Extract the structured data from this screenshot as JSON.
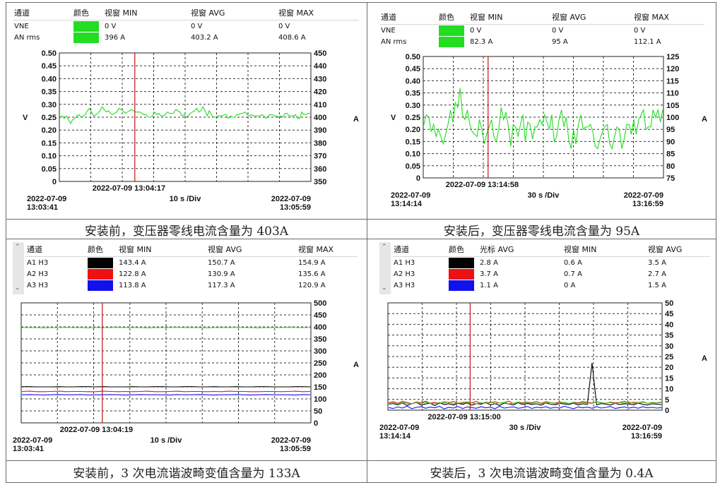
{
  "panels": [
    {
      "id": "p1",
      "columns": [
        "通道",
        "颜色",
        "视窗 MIN",
        "视窗 AVG",
        "视窗 MAX"
      ],
      "rows": [
        {
          "name": "VNE",
          "color": "#22dd22",
          "v1": "0 V",
          "v2": "0 V",
          "v3": "0 V"
        },
        {
          "name": "AN rms",
          "color": "#22dd22",
          "v1": "396 A",
          "v2": "403.2 A",
          "v3": "408.6 A"
        }
      ],
      "cursor_time": "2022-07-09  13:04:17",
      "start_date": "2022-07-09",
      "start_time": "13:03:41",
      "scale": "10 s /Div",
      "end_date": "2022-07-09",
      "end_time": "13:05:59",
      "left_axis_label": "V",
      "right_axis_label": "A",
      "caption": "安装前，变压器零线电流含量为 403A"
    },
    {
      "id": "p2",
      "columns": [
        "通道",
        "颜色",
        "视窗 MIN",
        "视窗 AVG",
        "视窗 MAX"
      ],
      "rows": [
        {
          "name": "VNE",
          "color": "#22dd22",
          "v1": "0 V",
          "v2": "0 V",
          "v3": "0 V"
        },
        {
          "name": "AN rms",
          "color": "#22dd22",
          "v1": "82.3 A",
          "v2": "95 A",
          "v3": "112.1 A"
        }
      ],
      "cursor_time": "2022-07-09  13:14:58",
      "start_date": "2022-07-09",
      "start_time": "13:14:14",
      "scale": "30 s /Div",
      "end_date": "2022-07-09",
      "end_time": "13:16:59",
      "left_axis_label": "V",
      "right_axis_label": "A",
      "caption": "安装后，变压器零线电流含量为 95A"
    },
    {
      "id": "p3",
      "columns": [
        "通道",
        "颜色",
        "视窗 MIN",
        "视窗 AVG",
        "视窗 MAX"
      ],
      "rows": [
        {
          "name": "A1 H3",
          "color": "#000000",
          "v1": "143.4 A",
          "v2": "150.7 A",
          "v3": "154.9 A"
        },
        {
          "name": "A2 H3",
          "color": "#ee1111",
          "v1": "122.8 A",
          "v2": "130.9 A",
          "v3": "135.6 A"
        },
        {
          "name": "A3 H3",
          "color": "#1111ee",
          "v1": "113.8 A",
          "v2": "117.3 A",
          "v3": "120.9 A"
        }
      ],
      "cursor_time": "2022-07-09  13:04:19",
      "start_date": "2022-07-09",
      "start_time": "13:03:41",
      "scale": "10 s /Div",
      "end_date": "2022-07-09",
      "end_time": "13:05:59",
      "right_axis_label": "A",
      "caption": "安装前，3 次电流谐波畸变值含量为 133A"
    },
    {
      "id": "p4",
      "columns": [
        "通道",
        "颜色",
        "光标 AVG",
        "视窗 MIN",
        "视窗 AVG"
      ],
      "rows": [
        {
          "name": "A1 H3",
          "color": "#000000",
          "v1": "2.8 A",
          "v2": "0.6 A",
          "v3": "3.5 A"
        },
        {
          "name": "A2 H3",
          "color": "#ee1111",
          "v1": "3.7 A",
          "v2": "0.7 A",
          "v3": "2.7 A"
        },
        {
          "name": "A3 H3",
          "color": "#1111ee",
          "v1": "1.1 A",
          "v2": "0 A",
          "v3": "1.5 A"
        }
      ],
      "cursor_time": "2022-07-09  13:15:00",
      "start_date": "2022-07-09",
      "start_time": "13:14:14",
      "scale": "30 s /Div",
      "end_date": "2022-07-09",
      "end_time": "13:16:59",
      "right_axis_label": "A",
      "caption": "安装后，3 次电流谐波畸变值含量为 0.4A"
    }
  ],
  "chart_data": [
    {
      "type": "line",
      "y_left": {
        "label": "V",
        "ticks": [
          "0.50",
          "0.45",
          "0.40",
          "0.35",
          "0.30",
          "0.25",
          "0.20",
          "0.15",
          "0.10",
          "0.05",
          "0"
        ],
        "lim": [
          0,
          0.5
        ]
      },
      "y_right": {
        "label": "A",
        "ticks": [
          "450",
          "440",
          "430",
          "420",
          "410",
          "400",
          "390",
          "380",
          "370",
          "360",
          "350"
        ],
        "lim": [
          350,
          450
        ]
      },
      "x": {
        "start": "2022-07-09 13:03:41",
        "end": "2022-07-09 13:05:59",
        "scale": "10 s /Div"
      },
      "cursor": "2022-07-09 13:04:17",
      "series": [
        {
          "color": "#22dd22",
          "axis": "right",
          "values": [
            400,
            401,
            399,
            401,
            398,
            395,
            398,
            399,
            401,
            402,
            400,
            401,
            402,
            405,
            407,
            404,
            401,
            402,
            403,
            405,
            408,
            406,
            404,
            405,
            403,
            402,
            403,
            404,
            407,
            406,
            405,
            403,
            404,
            405,
            406,
            405,
            404,
            404,
            404,
            403,
            402,
            402,
            400,
            400,
            401,
            404,
            402,
            403,
            401,
            401,
            402,
            404,
            403,
            403,
            403,
            406,
            405,
            404,
            401,
            402,
            400,
            401,
            403,
            404,
            405,
            407,
            404,
            405,
            408,
            405,
            401,
            405,
            402,
            400,
            400,
            401,
            401,
            401,
            402,
            402,
            399,
            401,
            400,
            400,
            402,
            402,
            403,
            403,
            404,
            402,
            401,
            402,
            401,
            401,
            401,
            401,
            402,
            401,
            399,
            401,
            402,
            402,
            401,
            401,
            400,
            401,
            400,
            403,
            403,
            401,
            401,
            401,
            402,
            399,
            399,
            404,
            402,
            402,
            403,
            403
          ]
        }
      ]
    },
    {
      "type": "line",
      "y_left": {
        "label": "V",
        "ticks": [
          "0.50",
          "0.45",
          "0.40",
          "0.35",
          "0.30",
          "0.25",
          "0.20",
          "0.15",
          "0.10",
          "0.05",
          "0"
        ],
        "lim": [
          0,
          0.5
        ]
      },
      "y_right": {
        "label": "A",
        "ticks": [
          "125",
          "120",
          "115",
          "110",
          "105",
          "100",
          "95",
          "90",
          "85",
          "80",
          "75"
        ],
        "lim": [
          75,
          125
        ]
      },
      "x": {
        "start": "2022-07-09 13:14:14",
        "end": "2022-07-09 13:16:59",
        "scale": "30 s /Div"
      },
      "cursor": "2022-07-09 13:14:58",
      "series": [
        {
          "color": "#22dd22",
          "axis": "right",
          "values": [
            97,
            101,
            100,
            94,
            97,
            92,
            95,
            92,
            89,
            93,
            97,
            103,
            98,
            106,
            104,
            112,
            101,
            99,
            103,
            97,
            94,
            93,
            92,
            99,
            95,
            89,
            93,
            96,
            99,
            92,
            90,
            95,
            104,
            99,
            102,
            96,
            88,
            97,
            96,
            92,
            97,
            101,
            90,
            98,
            97,
            91,
            96,
            96,
            99,
            97,
            101,
            98,
            95,
            101,
            90,
            92,
            99,
            103,
            96,
            100,
            91,
            87,
            95,
            89,
            97,
            101,
            95,
            96,
            96,
            97,
            94,
            88,
            87,
            91,
            94,
            96,
            97,
            89,
            87,
            92,
            96,
            95,
            87,
            91,
            97,
            97,
            93,
            99,
            93,
            99,
            101,
            103,
            95,
            96,
            96,
            103,
            100,
            103,
            98,
            103
          ]
        }
      ]
    },
    {
      "type": "line",
      "y_right": {
        "label": "A",
        "ticks": [
          "500",
          "450",
          "400",
          "350",
          "300",
          "250",
          "200",
          "150",
          "100",
          "50",
          "0"
        ],
        "lim": [
          0,
          500
        ]
      },
      "x": {
        "start": "2022-07-09 13:03:41",
        "end": "2022-07-09 13:05:59",
        "scale": "10 s /Div"
      },
      "cursor": "2022-07-09 13:04:19",
      "series": [
        {
          "name": "A1 H3",
          "color": "#000000",
          "values": [
            151,
            151,
            150,
            150,
            150,
            151,
            150,
            150,
            151,
            151,
            150,
            151,
            150,
            150,
            150,
            151,
            150,
            150,
            151,
            151,
            150,
            150,
            151,
            151,
            150,
            150,
            151,
            150,
            150,
            151,
            150,
            150,
            151,
            151,
            150,
            150,
            150,
            151,
            151,
            150
          ]
        },
        {
          "name": "A2 H3",
          "color": "#ee1111",
          "values": [
            131,
            132,
            130,
            130,
            131,
            132,
            130,
            131,
            131,
            130,
            130,
            132,
            131,
            130,
            131,
            130,
            131,
            132,
            130,
            130,
            131,
            132,
            130,
            131,
            131,
            130,
            131,
            130,
            132,
            131,
            131,
            130,
            130,
            131,
            131,
            130,
            131,
            132,
            130,
            131
          ]
        },
        {
          "name": "A3 H3",
          "color": "#1111ee",
          "values": [
            117,
            118,
            117,
            116,
            117,
            118,
            117,
            117,
            118,
            116,
            117,
            117,
            118,
            117,
            116,
            117,
            118,
            117,
            117,
            117,
            116,
            118,
            117,
            117,
            118,
            117,
            116,
            117,
            117,
            118,
            117,
            116,
            117,
            118,
            117,
            117,
            117,
            116,
            118,
            117
          ]
        },
        {
          "color": "#22dd22",
          "values": [
            397,
            397,
            397,
            396,
            397,
            397,
            398,
            397,
            397,
            396,
            397,
            397,
            397,
            398,
            397,
            397,
            397,
            396,
            397,
            397,
            397,
            398,
            397,
            397,
            397,
            396,
            397,
            397,
            397,
            398,
            397,
            397,
            396,
            397,
            397,
            397,
            398,
            397,
            397,
            397
          ]
        }
      ]
    },
    {
      "type": "line",
      "y_right": {
        "label": "A",
        "ticks": [
          "50",
          "45",
          "40",
          "35",
          "30",
          "25",
          "20",
          "15",
          "10",
          "5",
          "0"
        ],
        "lim": [
          0,
          50
        ]
      },
      "x": {
        "start": "2022-07-09 13:14:14",
        "end": "2022-07-09 13:16:59",
        "scale": "30 s /Div"
      },
      "cursor": "2022-07-09 13:15:00",
      "series": [
        {
          "name": "A1 H3",
          "color": "#000000",
          "values": [
            2.8,
            3.1,
            2.5,
            3.4,
            2.2,
            3.0,
            3.6,
            2.4,
            2.9,
            3.3,
            2.1,
            3.5,
            2.6,
            3.0,
            2.4,
            3.2,
            2.7,
            3.4,
            2.3,
            3.1,
            2.8,
            3.6,
            2.5,
            3.0,
            2.2,
            3.3,
            2.9,
            2.4,
            3.5,
            2.6,
            3.1,
            2.7,
            3.0,
            2.3,
            3.4,
            2.8,
            2.5,
            3.2,
            2.9,
            2.6,
            3.3,
            2.4,
            3.0,
            2.7,
            22.0,
            2.5,
            3.1,
            2.8,
            2.4,
            3.2,
            2.6,
            3.0,
            2.9,
            2.5,
            3.3,
            2.7,
            2.4,
            3.0,
            2.8,
            2.6
          ]
        },
        {
          "name": "A2 H3",
          "color": "#ee1111",
          "values": [
            3.5,
            3.9,
            3.2,
            4.1,
            3.6,
            3.0,
            3.8,
            3.4,
            4.2,
            3.3,
            3.7,
            3.1,
            3.9,
            3.5,
            4.0,
            3.2,
            3.6,
            3.8,
            3.4,
            4.1,
            3.0,
            3.7,
            3.5,
            3.9,
            3.3,
            3.6,
            4.2,
            3.1,
            3.8,
            3.4,
            3.7,
            3.5,
            4.0,
            3.2,
            3.9,
            3.6,
            3.3,
            3.8,
            3.5,
            3.1,
            3.7,
            3.4,
            4.0,
            3.6,
            3.3,
            3.9,
            3.5,
            3.2,
            3.8,
            3.4,
            3.6,
            4.1,
            3.3,
            3.7,
            3.5,
            3.9,
            3.2,
            3.6,
            3.4,
            3.8
          ]
        },
        {
          "name": "A3 H3",
          "color": "#1111ee",
          "values": [
            1.2,
            0.8,
            1.5,
            1.0,
            1.9,
            0.7,
            1.3,
            1.6,
            0.9,
            1.4,
            1.1,
            1.8,
            0.6,
            1.3,
            1.0,
            1.7,
            0.8,
            1.5,
            1.2,
            0.9,
            1.6,
            1.1,
            1.4,
            0.7,
            1.8,
            1.0,
            1.3,
            1.5,
            0.9,
            1.2,
            1.7,
            0.8,
            1.4,
            1.1,
            1.6,
            0.9,
            1.3,
            1.0,
            1.8,
            1.2,
            0.7,
            1.5,
            1.1,
            1.4,
            0.9,
            1.6,
            1.0,
            1.3,
            1.7,
            0.8,
            1.2,
            1.5,
            1.0,
            1.4,
            0.9,
            1.6,
            1.1,
            1.3,
            1.0,
            1.2
          ]
        },
        {
          "color": "#22dd22",
          "values": [
            3.0,
            3.4,
            2.8,
            3.6,
            3.2,
            2.9,
            3.5,
            3.1,
            3.7,
            3.3,
            3.0,
            3.6,
            3.2,
            3.8,
            2.9,
            3.4,
            3.1,
            3.6,
            3.3,
            3.0,
            3.5,
            3.2,
            3.9,
            3.1,
            3.4,
            3.6,
            3.0,
            3.3,
            3.7,
            3.1,
            3.5,
            3.2,
            3.8,
            3.0,
            3.4,
            3.6,
            3.1,
            3.3,
            3.7,
            3.2,
            3.5,
            3.0,
            3.6,
            3.3,
            3.1,
            3.8,
            3.4,
            3.2,
            3.6,
            3.0,
            3.5,
            3.3,
            3.9,
            3.1,
            3.4,
            3.7,
            3.2,
            3.5,
            3.3,
            3.6
          ]
        }
      ]
    }
  ]
}
